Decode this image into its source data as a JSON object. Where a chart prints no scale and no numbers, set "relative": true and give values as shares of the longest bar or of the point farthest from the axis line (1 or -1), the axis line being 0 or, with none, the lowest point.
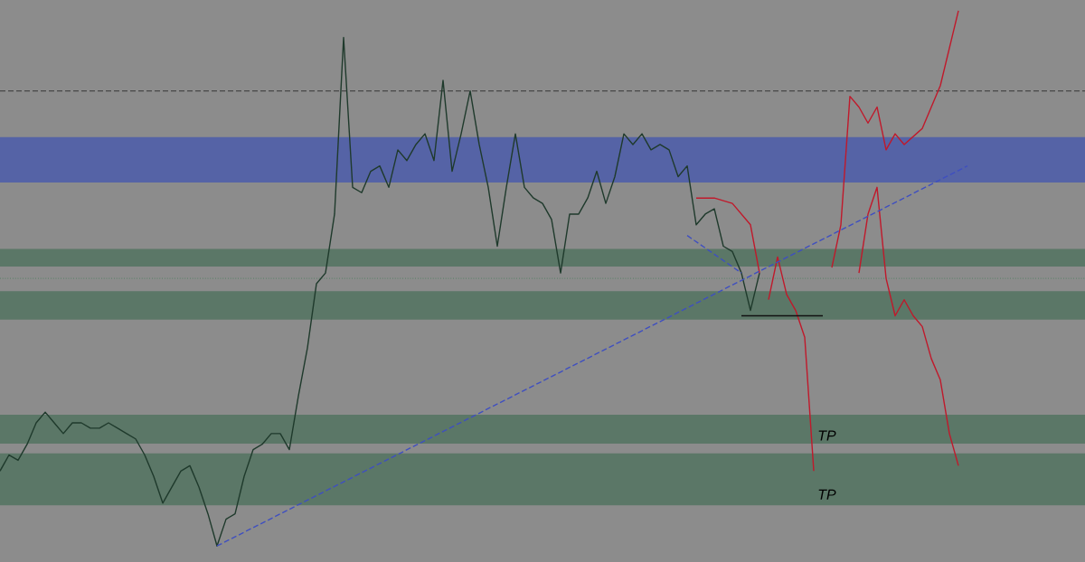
{
  "chart_data": {
    "type": "line",
    "relative": true,
    "grid": false,
    "marker": "none",
    "categories": [
      null,
      null,
      null,
      null,
      null,
      null,
      null,
      null,
      null,
      null,
      null,
      null,
      null,
      null,
      null,
      null,
      null,
      null,
      null,
      null,
      null,
      null,
      null,
      null,
      null,
      null,
      null,
      null,
      null,
      null,
      null,
      null,
      null,
      null,
      null,
      null,
      null,
      null,
      null,
      null,
      null,
      null,
      null,
      null,
      null,
      null,
      null,
      null,
      null,
      null,
      null,
      null,
      null,
      null,
      null,
      null,
      null,
      null,
      null,
      null,
      null,
      null,
      null,
      null,
      null,
      null,
      null,
      null,
      null,
      null,
      null,
      null,
      null,
      null,
      null,
      null,
      null,
      null,
      null,
      null,
      null,
      null,
      null,
      null,
      null,
      null,
      null,
      null,
      null,
      null,
      null,
      null,
      null,
      null,
      null,
      null,
      null,
      null,
      null,
      null,
      null,
      null,
      null,
      null,
      null,
      null,
      null,
      null,
      null,
      null,
      null,
      null,
      null,
      null,
      null,
      null,
      null,
      null,
      null,
      null,
      null
    ],
    "series": [
      {
        "color": "#1f3a2c",
        "line_style": "solid",
        "values": [
          0.14,
          0.17,
          0.16,
          0.19,
          0.23,
          0.25,
          0.23,
          0.21,
          0.23,
          0.23,
          0.22,
          0.22,
          0.23,
          0.22,
          0.21,
          0.2,
          0.17,
          0.13,
          0.08,
          0.11,
          0.14,
          0.15,
          0.11,
          0.06,
          0,
          0.05,
          0.06,
          0.13,
          0.18,
          0.19,
          0.21,
          0.21,
          0.18,
          0.28,
          0.37,
          0.49,
          0.51,
          0.62,
          0.95,
          0.67,
          0.66,
          0.7,
          0.71,
          0.67,
          0.74,
          0.72,
          0.75,
          0.77,
          0.72,
          0.87,
          0.7,
          0.77,
          0.85,
          0.75,
          0.67,
          0.56,
          0.67,
          0.77,
          0.67,
          0.65,
          0.64,
          0.61,
          0.51,
          0.62,
          0.62,
          0.65,
          0.7,
          0.64,
          0.69,
          0.77,
          0.75,
          0.77,
          0.74,
          0.75,
          0.74,
          0.69,
          0.71,
          0.6,
          0.62,
          0.63,
          0.56,
          0.55,
          0.51,
          0.44,
          0.51,
          null,
          null,
          null,
          null,
          null,
          null,
          null,
          null,
          null,
          null,
          null,
          null,
          null,
          null,
          null,
          null,
          null,
          null,
          null,
          null,
          null,
          null,
          null,
          null,
          null,
          null,
          null,
          null,
          null,
          null,
          null,
          null,
          null,
          null,
          null,
          null
        ]
      },
      {
        "color": "#c0192b",
        "line_style": "solid",
        "values": [
          null,
          null,
          null,
          null,
          null,
          null,
          null,
          null,
          null,
          null,
          null,
          null,
          null,
          null,
          null,
          null,
          null,
          null,
          null,
          null,
          null,
          null,
          null,
          null,
          null,
          null,
          null,
          null,
          null,
          null,
          null,
          null,
          null,
          null,
          null,
          null,
          null,
          null,
          null,
          null,
          null,
          null,
          null,
          null,
          null,
          null,
          null,
          null,
          null,
          null,
          null,
          null,
          null,
          null,
          null,
          null,
          null,
          null,
          null,
          null,
          null,
          null,
          null,
          null,
          null,
          null,
          null,
          null,
          null,
          null,
          null,
          null,
          null,
          null,
          null,
          null,
          null,
          0.65,
          null,
          0.65,
          null,
          0.64,
          null,
          0.6,
          0.51,
          null,
          null,
          null,
          null,
          null,
          null,
          null,
          null,
          null,
          null,
          null,
          null,
          null,
          null,
          null,
          null,
          null,
          null,
          null,
          null,
          null,
          null,
          null,
          null,
          null,
          null,
          null,
          null,
          null,
          null,
          null,
          null,
          null,
          null,
          null,
          null
        ]
      },
      {
        "color": "#c0192b",
        "line_style": "solid",
        "values": [
          null,
          null,
          null,
          null,
          null,
          null,
          null,
          null,
          null,
          null,
          null,
          null,
          null,
          null,
          null,
          null,
          null,
          null,
          null,
          null,
          null,
          null,
          null,
          null,
          null,
          null,
          null,
          null,
          null,
          null,
          null,
          null,
          null,
          null,
          null,
          null,
          null,
          null,
          null,
          null,
          null,
          null,
          null,
          null,
          null,
          null,
          null,
          null,
          null,
          null,
          null,
          null,
          null,
          null,
          null,
          null,
          null,
          null,
          null,
          null,
          null,
          null,
          null,
          null,
          null,
          null,
          null,
          null,
          null,
          null,
          null,
          null,
          null,
          null,
          null,
          null,
          null,
          null,
          null,
          null,
          null,
          null,
          null,
          null,
          null,
          0.46,
          0.54,
          0.47,
          0.44,
          0.39,
          0.14,
          null,
          null,
          null,
          null,
          null,
          null,
          null,
          null,
          null,
          null,
          null,
          null,
          null,
          null,
          null,
          null,
          null,
          null,
          null,
          null,
          null,
          null,
          null,
          null,
          null,
          null,
          null,
          null,
          null,
          null
        ]
      },
      {
        "color": "#c0192b",
        "line_style": "solid",
        "values": [
          null,
          null,
          null,
          null,
          null,
          null,
          null,
          null,
          null,
          null,
          null,
          null,
          null,
          null,
          null,
          null,
          null,
          null,
          null,
          null,
          null,
          null,
          null,
          null,
          null,
          null,
          null,
          null,
          null,
          null,
          null,
          null,
          null,
          null,
          null,
          null,
          null,
          null,
          null,
          null,
          null,
          null,
          null,
          null,
          null,
          null,
          null,
          null,
          null,
          null,
          null,
          null,
          null,
          null,
          null,
          null,
          null,
          null,
          null,
          null,
          null,
          null,
          null,
          null,
          null,
          null,
          null,
          null,
          null,
          null,
          null,
          null,
          null,
          null,
          null,
          null,
          null,
          null,
          null,
          null,
          null,
          null,
          null,
          null,
          null,
          null,
          null,
          null,
          null,
          null,
          null,
          null,
          0.52,
          0.6,
          0.84,
          0.82,
          0.79,
          0.82,
          0.74,
          0.77,
          0.75,
          null,
          0.78,
          null,
          0.86,
          null,
          1.0,
          null,
          null,
          null,
          null,
          null,
          null,
          null,
          null,
          null,
          null,
          null,
          null,
          null,
          null
        ]
      },
      {
        "color": "#c0192b",
        "line_style": "solid",
        "values": [
          null,
          null,
          null,
          null,
          null,
          null,
          null,
          null,
          null,
          null,
          null,
          null,
          null,
          null,
          null,
          null,
          null,
          null,
          null,
          null,
          null,
          null,
          null,
          null,
          null,
          null,
          null,
          null,
          null,
          null,
          null,
          null,
          null,
          null,
          null,
          null,
          null,
          null,
          null,
          null,
          null,
          null,
          null,
          null,
          null,
          null,
          null,
          null,
          null,
          null,
          null,
          null,
          null,
          null,
          null,
          null,
          null,
          null,
          null,
          null,
          null,
          null,
          null,
          null,
          null,
          null,
          null,
          null,
          null,
          null,
          null,
          null,
          null,
          null,
          null,
          null,
          null,
          null,
          null,
          null,
          null,
          null,
          null,
          null,
          null,
          null,
          null,
          null,
          null,
          null,
          null,
          null,
          null,
          null,
          null,
          0.51,
          0.62,
          0.67,
          0.5,
          0.43,
          0.46,
          0.43,
          0.41,
          0.35,
          0.31,
          0.21,
          0.15,
          null,
          null,
          null,
          null,
          null,
          null,
          null,
          null,
          null,
          null,
          null,
          null,
          null,
          null
        ]
      },
      {
        "color": "#3f4fc0",
        "line_style": "dashed",
        "values": [
          null,
          null,
          null,
          null,
          null,
          null,
          null,
          null,
          null,
          null,
          null,
          null,
          null,
          null,
          null,
          null,
          null,
          null,
          null,
          null,
          null,
          null,
          null,
          null,
          0,
          null,
          null,
          null,
          null,
          null,
          null,
          null,
          null,
          null,
          null,
          null,
          null,
          null,
          null,
          null,
          null,
          null,
          null,
          null,
          null,
          null,
          null,
          null,
          null,
          null,
          null,
          null,
          null,
          null,
          null,
          null,
          null,
          null,
          null,
          null,
          null,
          null,
          null,
          null,
          null,
          null,
          null,
          null,
          null,
          null,
          null,
          null,
          null,
          null,
          null,
          null,
          null,
          null,
          null,
          null,
          null,
          null,
          null,
          null,
          null,
          null,
          null,
          null,
          null,
          null,
          null,
          null,
          null,
          null,
          null,
          null,
          null,
          null,
          null,
          null,
          null,
          null,
          null,
          null,
          null,
          null,
          null,
          0.71,
          null,
          null,
          null,
          null,
          null,
          null,
          null,
          null,
          null,
          null,
          null,
          null,
          null
        ]
      },
      {
        "color": "#3f4fc0",
        "line_style": "dashed",
        "values": [
          null,
          null,
          null,
          null,
          null,
          null,
          null,
          null,
          null,
          null,
          null,
          null,
          null,
          null,
          null,
          null,
          null,
          null,
          null,
          null,
          null,
          null,
          null,
          null,
          null,
          null,
          null,
          null,
          null,
          null,
          null,
          null,
          null,
          null,
          null,
          null,
          null,
          null,
          null,
          null,
          null,
          null,
          null,
          null,
          null,
          null,
          null,
          null,
          null,
          null,
          null,
          null,
          null,
          null,
          null,
          null,
          null,
          null,
          null,
          null,
          null,
          null,
          null,
          null,
          null,
          null,
          null,
          null,
          null,
          null,
          null,
          null,
          null,
          null,
          null,
          null,
          0.58,
          null,
          null,
          null,
          null,
          null,
          0.51,
          null,
          null,
          null,
          null,
          null,
          null,
          null,
          null,
          null,
          null,
          null,
          null,
          null,
          null,
          null,
          null,
          null,
          null,
          null,
          null,
          null,
          null,
          null,
          null,
          null,
          null,
          null,
          null,
          null,
          null,
          null,
          null,
          null,
          null,
          null,
          null,
          null,
          null
        ]
      },
      {
        "color": "#111111",
        "line_style": "solid",
        "values": [
          null,
          null,
          null,
          null,
          null,
          null,
          null,
          null,
          null,
          null,
          null,
          null,
          null,
          null,
          null,
          null,
          null,
          null,
          null,
          null,
          null,
          null,
          null,
          null,
          null,
          null,
          null,
          null,
          null,
          null,
          null,
          null,
          null,
          null,
          null,
          null,
          null,
          null,
          null,
          null,
          null,
          null,
          null,
          null,
          null,
          null,
          null,
          null,
          null,
          null,
          null,
          null,
          null,
          null,
          null,
          null,
          null,
          null,
          null,
          null,
          null,
          null,
          null,
          null,
          null,
          null,
          null,
          null,
          null,
          null,
          null,
          null,
          null,
          null,
          null,
          null,
          null,
          null,
          null,
          null,
          null,
          null,
          0.43,
          null,
          null,
          null,
          null,
          null,
          null,
          null,
          null,
          0.43,
          null,
          null,
          null,
          null,
          null,
          null,
          null,
          null,
          null,
          null,
          null,
          null,
          null,
          null,
          null,
          null,
          null,
          null,
          null,
          null,
          null,
          null,
          null,
          null,
          null,
          null,
          null,
          null,
          null
        ]
      }
    ],
    "bands": [
      {
        "axis": "y",
        "from": 0.679,
        "to": 0.764,
        "color": "#5563a6"
      },
      {
        "axis": "y",
        "from": 0.522,
        "to": 0.555,
        "color": "#5b7767"
      },
      {
        "axis": "y",
        "from": 0.423,
        "to": 0.476,
        "color": "#5b7767"
      },
      {
        "axis": "y",
        "from": 0.191,
        "to": 0.245,
        "color": "#5b7767"
      },
      {
        "axis": "y",
        "from": 0.076,
        "to": 0.173,
        "color": "#5b7767"
      }
    ],
    "ref_lines": [
      {
        "axis": "y",
        "value": 0.85,
        "color": "#222222",
        "line_style": "dashed"
      },
      {
        "axis": "y",
        "value": 0.5,
        "color": "#2e7a4a",
        "line_style": "dotted"
      }
    ],
    "annotations": [
      "TP",
      "TP"
    ]
  }
}
